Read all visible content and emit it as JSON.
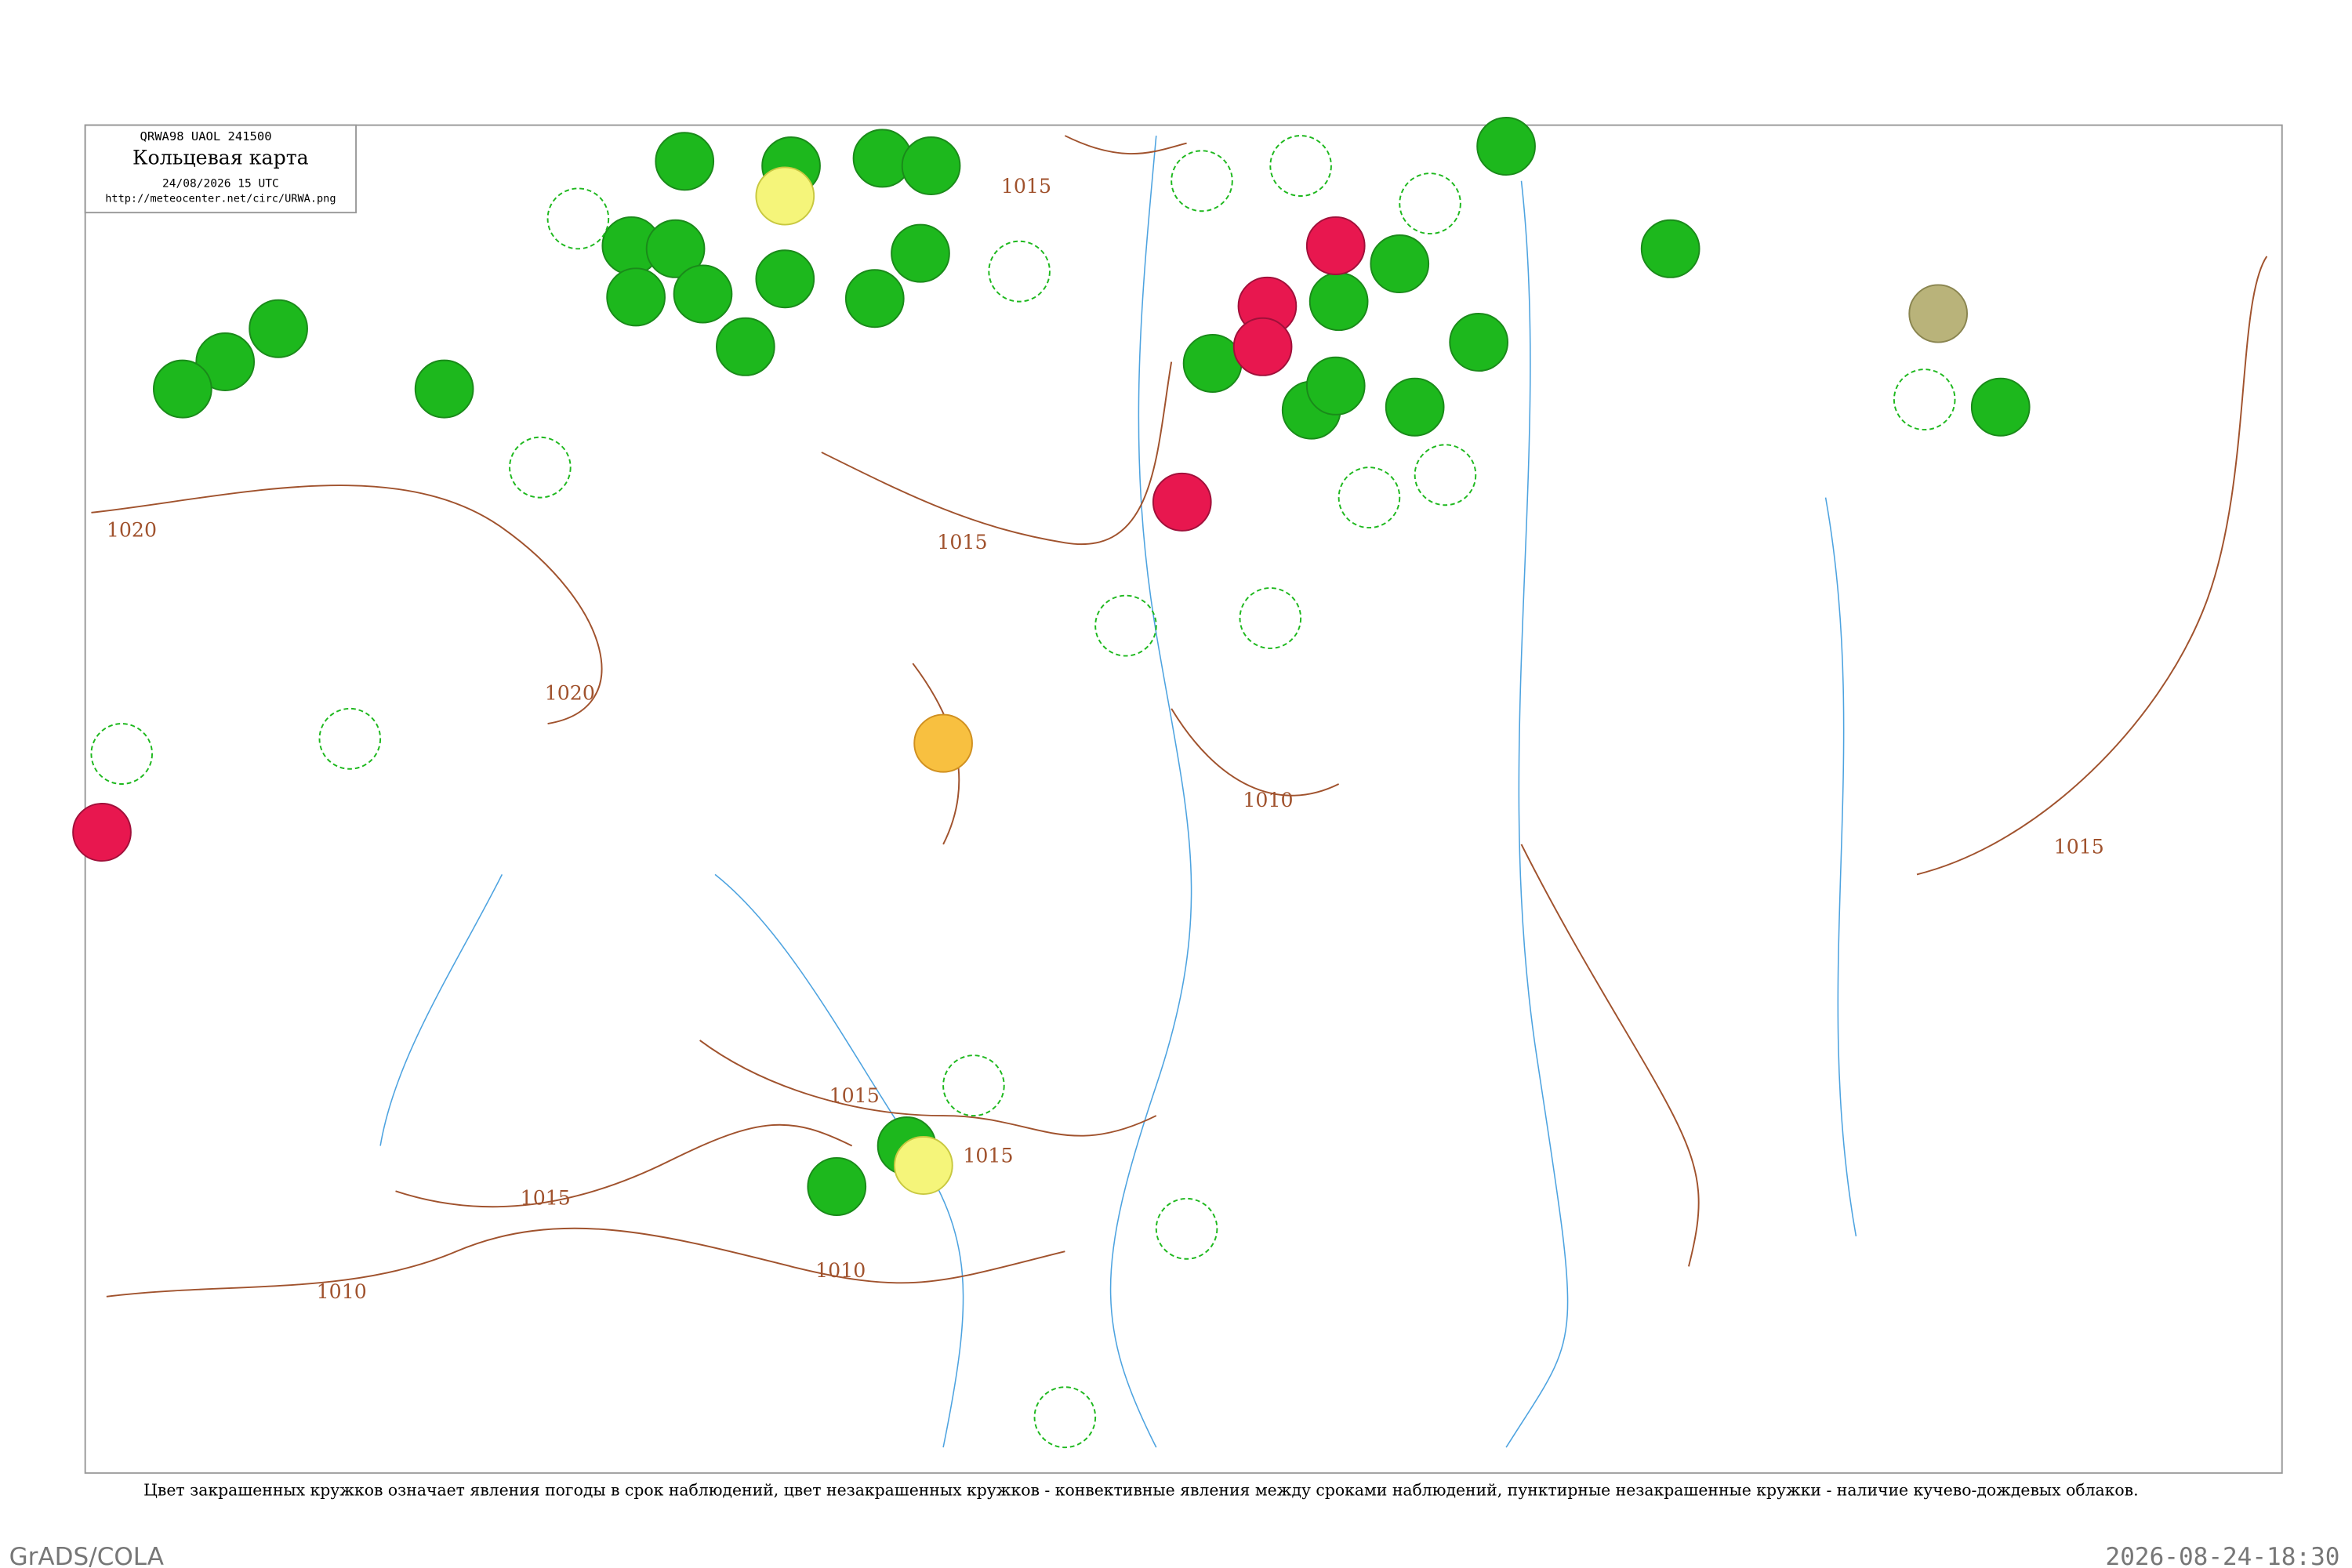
{
  "header": {
    "code": "QRWA98  UAOL  241500",
    "title": "Кольцевая карта",
    "date": "24/08/2026 15 UTC",
    "url": "http://meteocenter.net/circ/URWA.png"
  },
  "isobars": [
    "1020",
    "1020",
    "1015",
    "1015",
    "1010",
    "1015",
    "1015",
    "1015",
    "1015",
    "1010",
    "1010"
  ],
  "caption": "Цвет закрашенных кружков означает явления погоды в срок наблюдений, цвет незакрашенных кружков - конвективные явления между сроками наблюдений, пунктирные незакрашенные кружки - наличие кучево-дождевых облаков.",
  "footer": {
    "left": "GrADS/COLA",
    "right": "2026-08-24-18:30"
  }
}
